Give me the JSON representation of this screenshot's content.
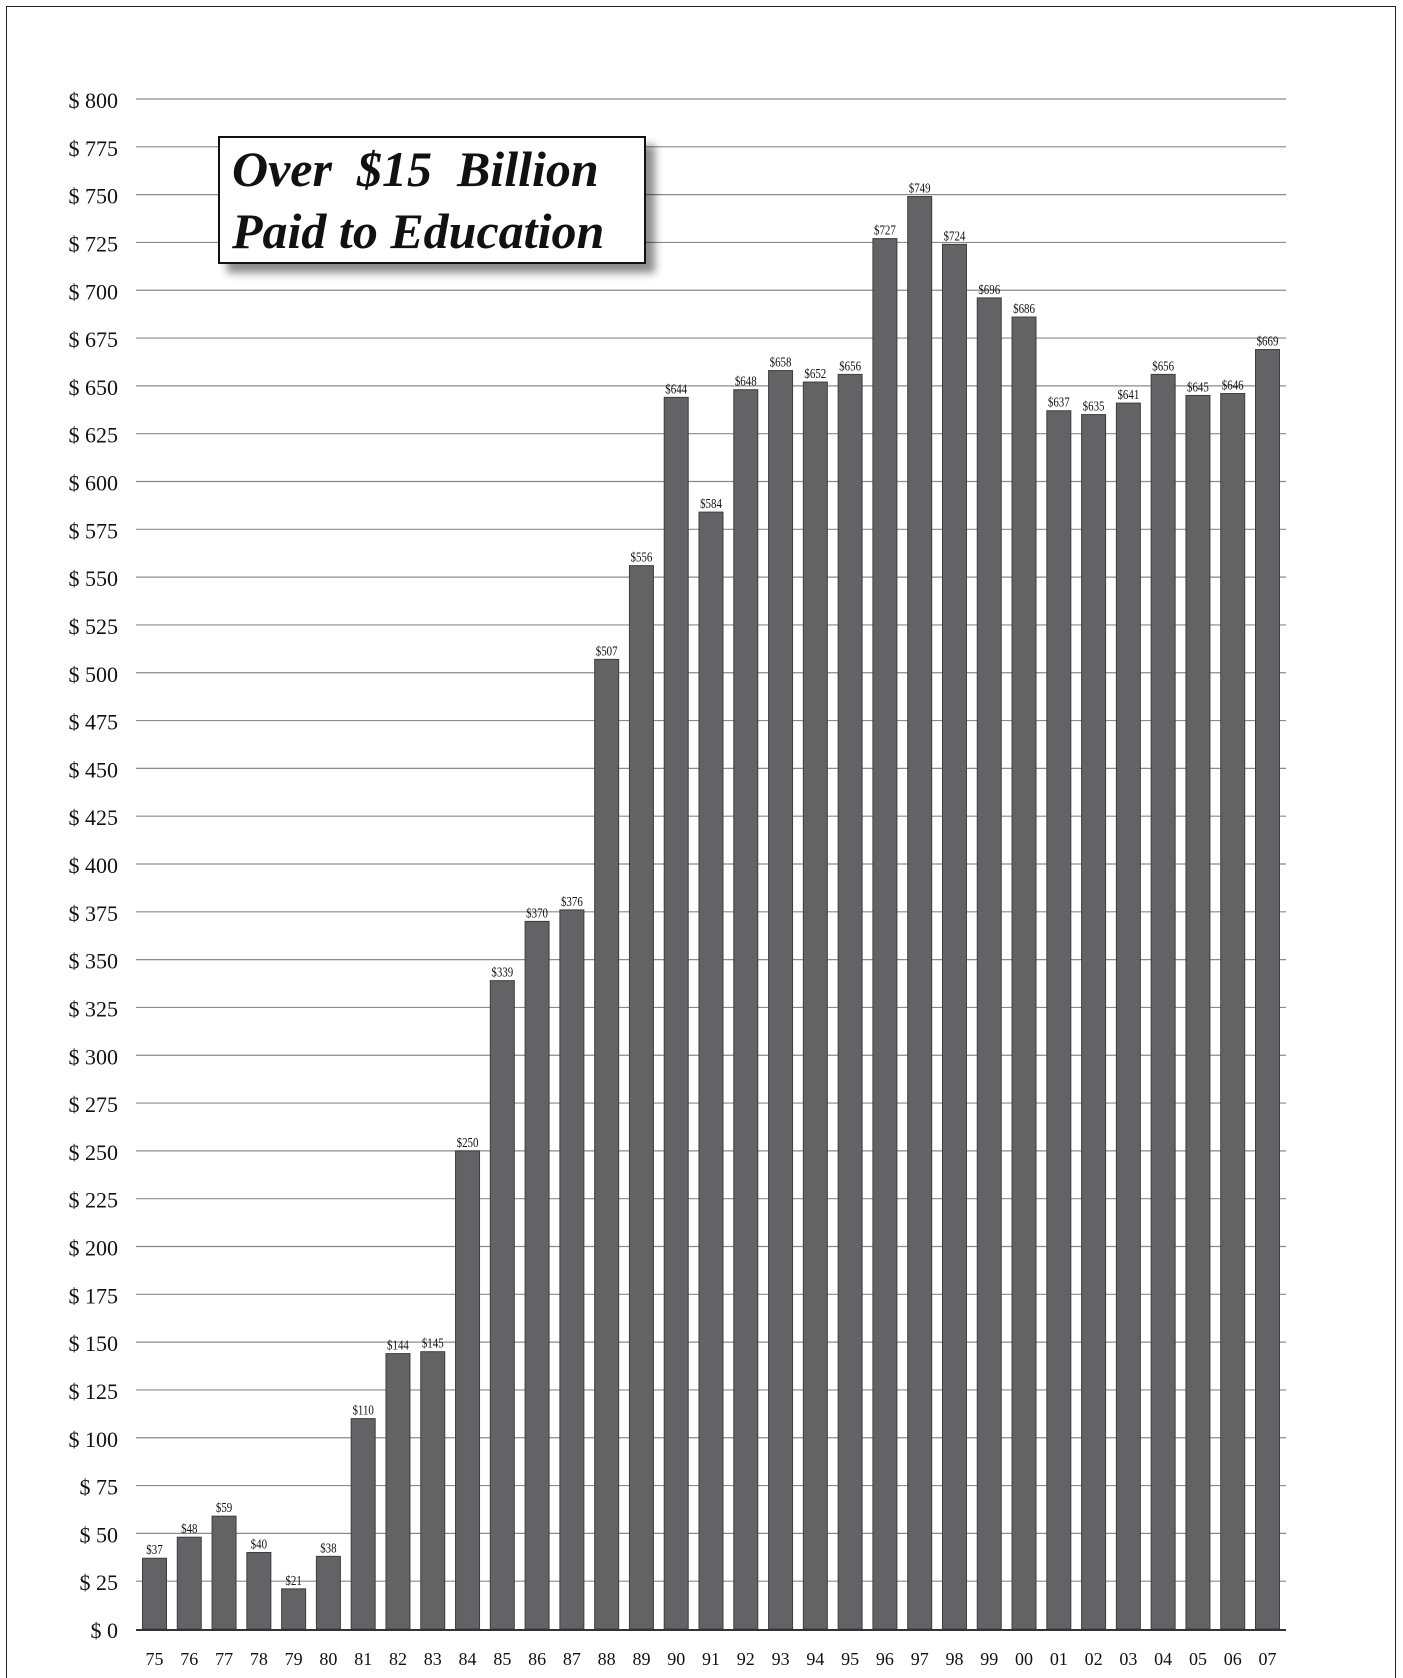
{
  "chart_data": {
    "type": "bar",
    "title_lines": [
      "Over  $15  Billion",
      "Paid to Education"
    ],
    "categories": [
      "75",
      "76",
      "77",
      "78",
      "79",
      "80",
      "81",
      "82",
      "83",
      "84",
      "85",
      "86",
      "87",
      "88",
      "89",
      "90",
      "91",
      "92",
      "93",
      "94",
      "95",
      "96",
      "97",
      "98",
      "99",
      "00",
      "01",
      "02",
      "03",
      "04",
      "05",
      "06",
      "07"
    ],
    "values": [
      37,
      48,
      59,
      40,
      21,
      38,
      110,
      144,
      145,
      250,
      339,
      370,
      376,
      507,
      556,
      644,
      584,
      648,
      658,
      652,
      656,
      727,
      749,
      724,
      696,
      686,
      637,
      635,
      641,
      656,
      645,
      646,
      669
    ],
    "data_labels": [
      "$37",
      "$48",
      "$59",
      "$40",
      "$21",
      "$38",
      "$110",
      "$144",
      "$145",
      "$250",
      "$339",
      "$370",
      "$376",
      "$507",
      "$556",
      "$644",
      "$584",
      "$648",
      "$658",
      "$652",
      "$656",
      "$727",
      "$749",
      "$724",
      "$696",
      "$686",
      "$637",
      "$635",
      "$641",
      "$656",
      "$645",
      "$646",
      "$669"
    ],
    "yticks": [
      "$ 0",
      "$ 25",
      "$ 50",
      "$ 75",
      "$ 100",
      "$ 125",
      "$ 150",
      "$ 175",
      "$ 200",
      "$ 225",
      "$ 250",
      "$ 275",
      "$ 300",
      "$ 325",
      "$ 350",
      "$ 375",
      "$ 400",
      "$ 425",
      "$ 450",
      "$ 475",
      "$ 500",
      "$ 525",
      "$ 550",
      "$ 575",
      "$ 600",
      "$ 625",
      "$ 650",
      "$ 675",
      "$ 700",
      "$ 725",
      "$ 750",
      "$ 775",
      "$ 800"
    ],
    "ytick_step": 25,
    "ylim": [
      0,
      800
    ],
    "grid": true,
    "bar_color": "#636365",
    "grid_color": "#8a8a8a",
    "axis_color": "#333333"
  }
}
